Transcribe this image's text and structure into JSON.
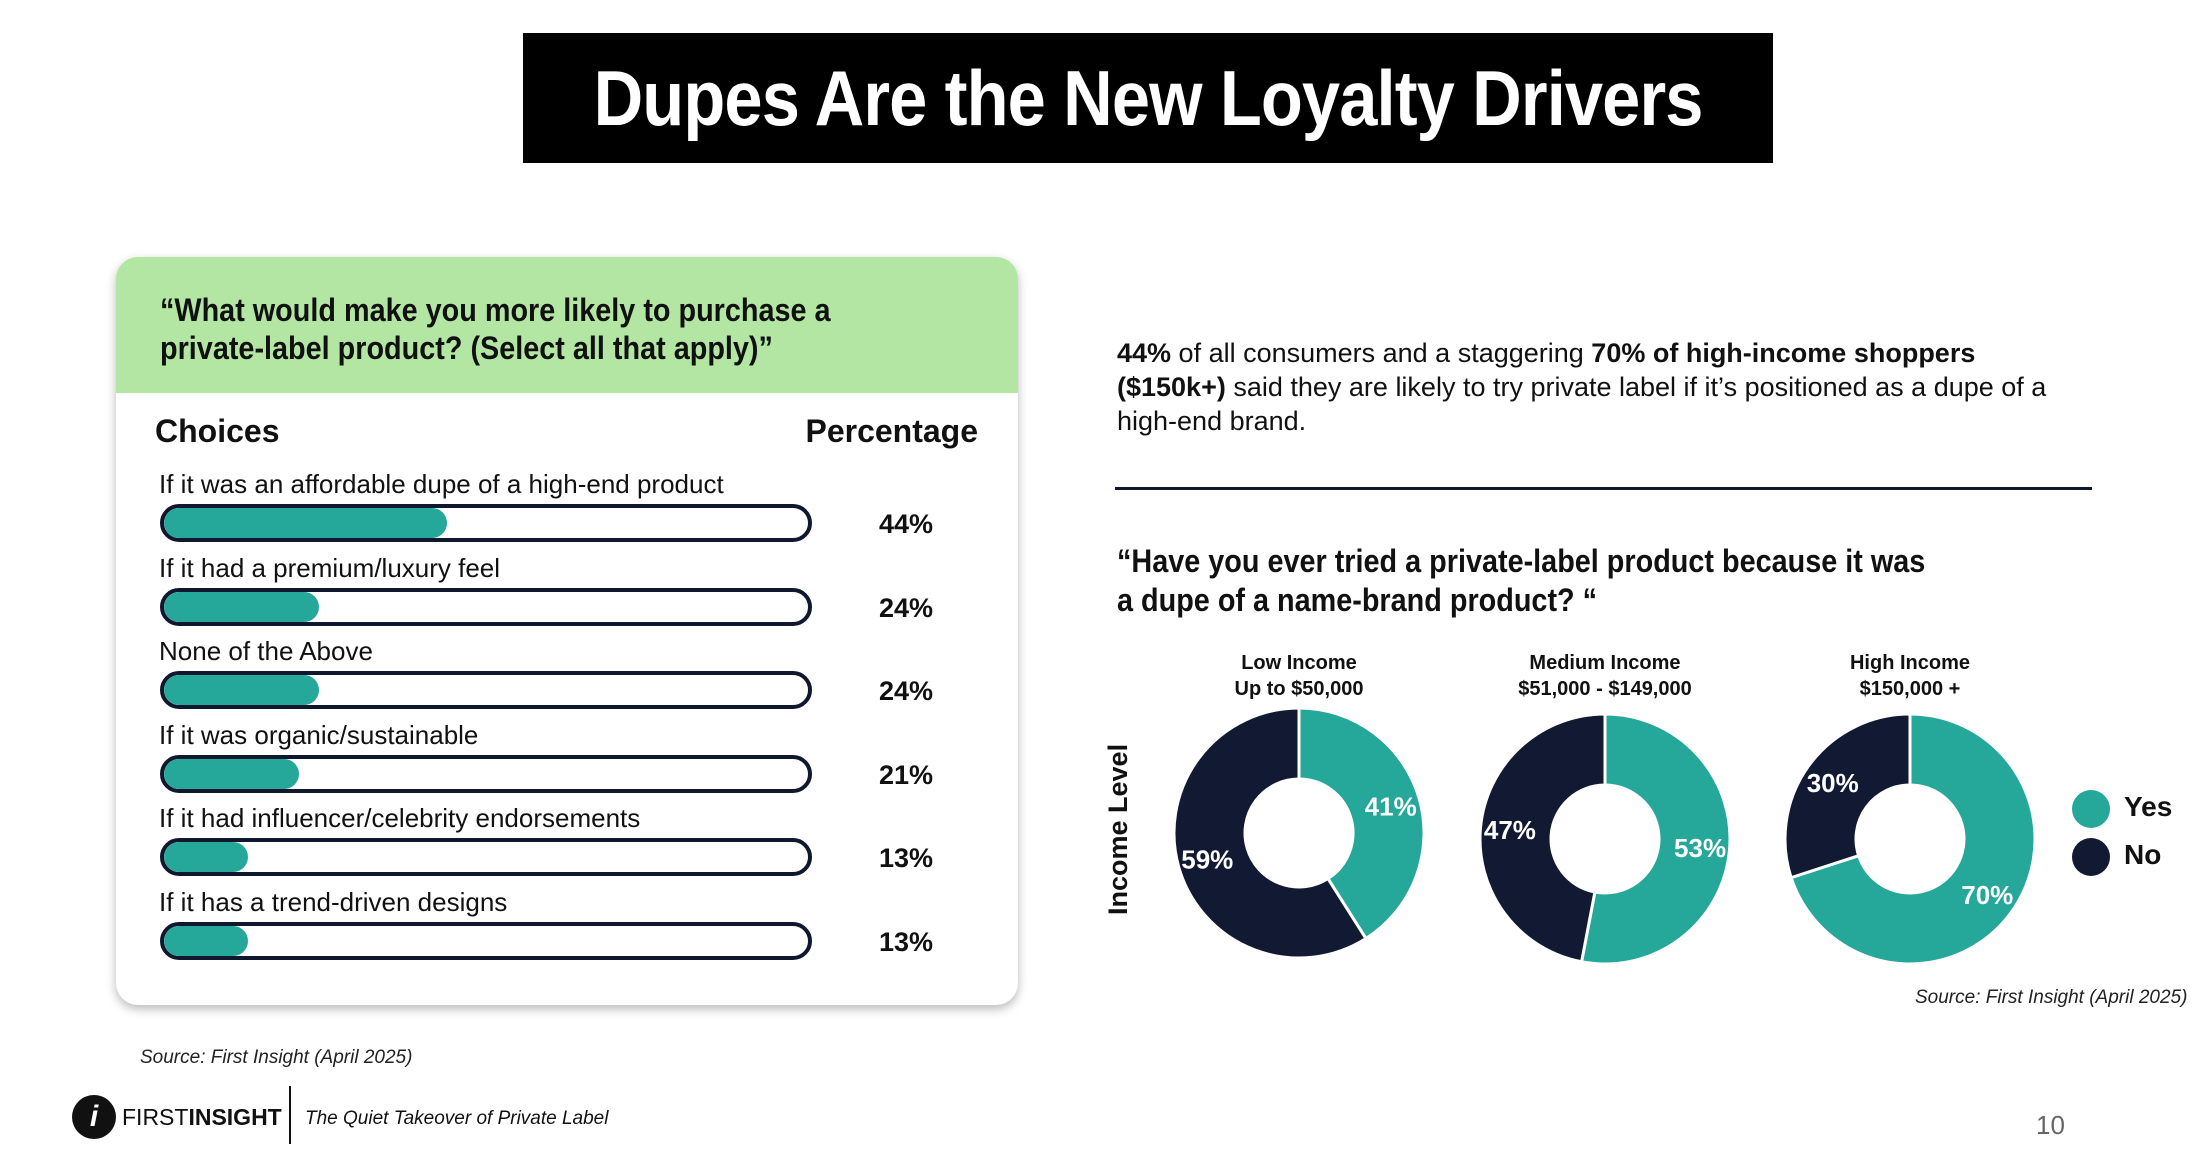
{
  "title": "Dupes Are the New Loyalty Drivers",
  "left_card": {
    "question": "“What would make you more likely to purchase a private-label product? (Select all that apply)”",
    "col_choices": "Choices",
    "col_percentage": "Percentage",
    "source": "Source: First Insight (April 2025)"
  },
  "stat_text": {
    "p1": "44%",
    "p2": " of all consumers and a staggering ",
    "p3": "70% of high-income shoppers ($150k+)",
    "p4": " said they are likely to try private label if it’s positioned as a dupe of a high-end brand."
  },
  "right_question": "“Have you ever tried a private-label product because it was a dupe of a name-brand product? “",
  "y_axis_label": "Income Level",
  "right_source": "Source: First Insight (April 2025)",
  "legend": {
    "yes": "Yes",
    "no": "No"
  },
  "colors": {
    "teal": "#25a79a",
    "navy": "#121a33",
    "green_head": "#b3e6a3"
  },
  "footer": {
    "brand_first": "FIRST",
    "brand_second": "INSIGHT",
    "logo_letter": "i",
    "subtitle": "The Quiet Takeover of Private Label",
    "page": "10"
  },
  "chart_data": [
    {
      "type": "bar",
      "orientation": "horizontal",
      "title": "“What would make you more likely to purchase a private-label product? (Select all that apply)”",
      "categories": [
        "If it was an affordable dupe of a high-end product",
        "If it had a premium/luxury feel",
        "None of the Above",
        "If it was organic/sustainable",
        "If it had influencer/celebrity endorsements",
        "If it has a trend-driven designs"
      ],
      "values": [
        44,
        24,
        24,
        21,
        13,
        13
      ],
      "labels": [
        "44%",
        "24%",
        "24%",
        "21%",
        "13%",
        "13%"
      ],
      "xlim": [
        0,
        100
      ]
    },
    {
      "type": "pie",
      "subtype": "donut",
      "title": "“Have you ever tried a private-label product because it was a dupe of a name-brand product? “",
      "groups": [
        {
          "name": "Low Income",
          "range": "Up to $50,000",
          "yes": 41,
          "no": 59,
          "yes_label": "41%",
          "no_label": "59%"
        },
        {
          "name": "Medium Income",
          "range": "$51,000 - $149,000",
          "yes": 53,
          "no": 47,
          "yes_label": "53%",
          "no_label": "47%"
        },
        {
          "name": "High Income",
          "range": "$150,000 +",
          "yes": 70,
          "no": 30,
          "yes_label": "70%",
          "no_label": "30%"
        }
      ],
      "legend": [
        "Yes",
        "No"
      ],
      "ylabel": "Income Level"
    }
  ]
}
